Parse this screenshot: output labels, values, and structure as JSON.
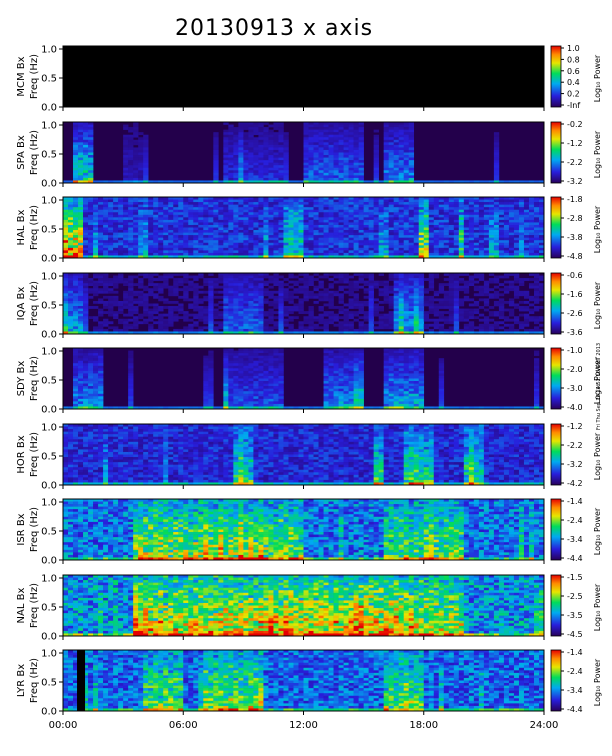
{
  "title": "20130913 x axis",
  "stamp": "Fri Thu Sep 26 14:52:56 GMT 2013",
  "chart_data": {
    "type": "heatmap",
    "title": "20130913 x axis",
    "x_range": [
      0,
      24
    ],
    "x_ticks": [
      "00:00",
      "06:00",
      "12:00",
      "18:00",
      "24:00"
    ],
    "ylim": [
      0,
      1.0
    ],
    "y_ticks": [
      "0.0",
      "0.5",
      "1.0"
    ],
    "colorbar_label": "Log₁₀ Power",
    "panels": [
      {
        "station": "MCM",
        "ylabel_line1": "MCM Bx",
        "ylabel_line2": "Freq (Hz)",
        "cbar_ticks": [
          "1.0",
          "0.8",
          "0.6",
          "0.4",
          "0.2",
          "-Inf"
        ],
        "no_data": true,
        "activity": []
      },
      {
        "station": "SPA",
        "ylabel_line1": "SPA Bx",
        "ylabel_line2": "Freq (Hz)",
        "cbar_ticks": [
          "-0.2",
          "-1.2",
          "-2.2",
          "-3.2"
        ],
        "base_level": 0.03,
        "activity": [
          [
            0.5,
            1.5,
            0.55
          ],
          [
            3,
            4,
            0.12
          ],
          [
            8,
            11,
            0.2
          ],
          [
            12,
            15,
            0.3
          ],
          [
            16,
            17.5,
            0.35
          ]
        ]
      },
      {
        "station": "HAL",
        "ylabel_line1": "HAL Bx",
        "ylabel_line2": "Freq (Hz)",
        "cbar_ticks": [
          "-1.8",
          "-2.8",
          "-3.8",
          "-4.8"
        ],
        "base_level": 0.2,
        "activity": [
          [
            0,
            1,
            0.75
          ],
          [
            11,
            12,
            0.35
          ],
          [
            17.8,
            18.3,
            0.55
          ],
          [
            19.7,
            20.1,
            0.45
          ]
        ]
      },
      {
        "station": "IQA",
        "ylabel_line1": "IQA Bx",
        "ylabel_line2": "Freq (Hz)",
        "cbar_ticks": [
          "-0.6",
          "-1.6",
          "-2.6",
          "-3.6"
        ],
        "base_level": 0.07,
        "activity": [
          [
            0,
            1,
            0.35
          ],
          [
            8,
            10,
            0.25
          ],
          [
            16.5,
            18,
            0.35
          ]
        ]
      },
      {
        "station": "SDY",
        "ylabel_line1": "SDY Bx",
        "ylabel_line2": "Freq (Hz)",
        "cbar_ticks": [
          "-1.0",
          "-2.0",
          "-3.0",
          "-4.0"
        ],
        "base_level": 0.04,
        "activity": [
          [
            0.5,
            2,
            0.35
          ],
          [
            8,
            11,
            0.25
          ],
          [
            13,
            15,
            0.35
          ],
          [
            16,
            18,
            0.4
          ]
        ]
      },
      {
        "station": "HOR",
        "ylabel_line1": "HOR Bx",
        "ylabel_line2": "Freq (Hz)",
        "cbar_ticks": [
          "-1.2",
          "-2.2",
          "-3.2",
          "-4.2"
        ],
        "base_level": 0.18,
        "activity": [
          [
            8.5,
            9.5,
            0.4
          ],
          [
            15.5,
            16,
            0.45
          ],
          [
            17,
            18.5,
            0.45
          ],
          [
            20,
            21,
            0.4
          ]
        ]
      },
      {
        "station": "ISR",
        "ylabel_line1": "ISR Bx",
        "ylabel_line2": "Freq (Hz)",
        "cbar_ticks": [
          "-1.4",
          "-2.4",
          "-3.4",
          "-4.4"
        ],
        "base_level": 0.3,
        "activity": [
          [
            3.5,
            9,
            0.45
          ],
          [
            9,
            12,
            0.4
          ],
          [
            16,
            20,
            0.35
          ]
        ]
      },
      {
        "station": "NAL",
        "ylabel_line1": "NAL Bx",
        "ylabel_line2": "Freq (Hz)",
        "cbar_ticks": [
          "-1.5",
          "-2.5",
          "-3.5",
          "-4.5"
        ],
        "base_level": 0.35,
        "activity": [
          [
            3.5,
            9,
            0.5
          ],
          [
            9,
            17.5,
            0.55
          ],
          [
            17.5,
            20,
            0.4
          ]
        ]
      },
      {
        "station": "LYR",
        "ylabel_line1": "LYR Bx",
        "ylabel_line2": "Freq (Hz)",
        "cbar_ticks": [
          "-1.4",
          "-2.4",
          "-3.4",
          "-4.4"
        ],
        "base_level": 0.28,
        "gap": [
          0.7,
          1.1
        ],
        "activity": [
          [
            4,
            6,
            0.4
          ],
          [
            7,
            10,
            0.45
          ],
          [
            16,
            18,
            0.35
          ]
        ]
      }
    ]
  }
}
